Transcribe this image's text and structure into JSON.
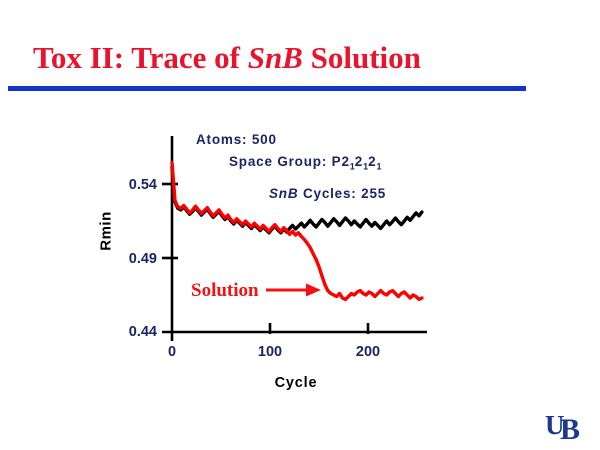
{
  "header": {
    "title_part1": "Tox II: Trace of ",
    "title_italic": "SnB",
    "title_part2": " Solution"
  },
  "annotations": {
    "atoms": "Atoms: 500",
    "space_group": {
      "prefix": "Space Group: P2",
      "sub1": "1",
      "mid1": "2",
      "sub2": "1",
      "mid2": "2",
      "sub3": "1"
    },
    "snb_cycles_italic": "SnB",
    "snb_cycles_rest": " Cycles: 255",
    "solution": "Solution",
    "solution_arrow_points_to": {
      "cycle": 158,
      "rmin": 0.467
    }
  },
  "colors": {
    "background": "#FFFFFF",
    "title_red": "#E9132D",
    "rule_blue": "#1233CC",
    "label_navy": "#1B2566",
    "axis_black": "#000000",
    "solution_red": "#F31111",
    "logo_blue": "#1B3A8E"
  },
  "logo": {
    "u": "U",
    "b": "B"
  },
  "chart_data": {
    "type": "line",
    "title": "",
    "xlabel": "Cycle",
    "ylabel": "Rmin",
    "xlim": [
      0,
      258
    ],
    "ylim": [
      0.44,
      0.565
    ],
    "xticks": [
      0,
      100,
      200
    ],
    "yticks": [
      0.44,
      0.49,
      0.54
    ],
    "xtick_labels": [
      "0",
      "100",
      "200"
    ],
    "ytick_labels": [
      "0.54",
      "0.49",
      "0.44"
    ],
    "grid": false,
    "legend": "none",
    "annotations": [
      "Atoms: 500",
      "Space Group: P2(1)2(1)2(1)",
      "SnB Cycles: 255",
      "Solution (arrow at ~cycle 158, Rmin ~0.467)"
    ],
    "x": [
      0,
      3,
      6,
      9,
      12,
      15,
      18,
      21,
      24,
      27,
      30,
      33,
      36,
      39,
      42,
      45,
      48,
      51,
      54,
      57,
      60,
      63,
      66,
      69,
      72,
      75,
      78,
      81,
      84,
      87,
      90,
      93,
      96,
      99,
      102,
      105,
      108,
      111,
      114,
      117,
      120,
      123,
      126,
      129,
      132,
      135,
      138,
      141,
      144,
      147,
      150,
      153,
      156,
      159,
      162,
      165,
      168,
      171,
      174,
      177,
      180,
      183,
      186,
      189,
      192,
      195,
      198,
      201,
      204,
      207,
      210,
      213,
      216,
      219,
      222,
      225,
      228,
      231,
      234,
      237,
      240,
      243,
      246,
      249,
      252,
      255
    ],
    "series": [
      {
        "key": "no_solution",
        "name": "Rmin trace (non-solution run, black)",
        "color": "#000000",
        "values": [
          0.5515,
          0.528,
          0.5235,
          0.5225,
          0.5245,
          0.522,
          0.5195,
          0.5215,
          0.524,
          0.5215,
          0.519,
          0.521,
          0.523,
          0.52,
          0.5175,
          0.5195,
          0.5215,
          0.5185,
          0.516,
          0.518,
          0.515,
          0.513,
          0.5155,
          0.5135,
          0.5115,
          0.514,
          0.512,
          0.51,
          0.5125,
          0.5105,
          0.5085,
          0.511,
          0.509,
          0.507,
          0.5095,
          0.5115,
          0.509,
          0.507,
          0.5095,
          0.5075,
          0.51,
          0.512,
          0.5095,
          0.5115,
          0.5135,
          0.511,
          0.513,
          0.5155,
          0.513,
          0.511,
          0.5135,
          0.516,
          0.514,
          0.5115,
          0.514,
          0.5165,
          0.5145,
          0.512,
          0.5145,
          0.517,
          0.515,
          0.5125,
          0.515,
          0.513,
          0.511,
          0.5135,
          0.516,
          0.5135,
          0.5115,
          0.514,
          0.512,
          0.51,
          0.5125,
          0.515,
          0.5125,
          0.5145,
          0.517,
          0.5145,
          0.5125,
          0.515,
          0.5175,
          0.5155,
          0.518,
          0.5205,
          0.5185,
          0.521
        ]
      },
      {
        "key": "solution",
        "name": "Rmin trace (solution run, red)",
        "color": "#FF0000",
        "values": [
          0.5545,
          0.529,
          0.5245,
          0.5235,
          0.5255,
          0.523,
          0.5205,
          0.5225,
          0.525,
          0.5225,
          0.52,
          0.522,
          0.524,
          0.521,
          0.5185,
          0.5205,
          0.5225,
          0.5195,
          0.517,
          0.519,
          0.516,
          0.514,
          0.5165,
          0.5145,
          0.5125,
          0.515,
          0.513,
          0.511,
          0.5135,
          0.5115,
          0.5095,
          0.512,
          0.51,
          0.508,
          0.5105,
          0.5125,
          0.51,
          0.508,
          0.5105,
          0.5085,
          0.506,
          0.508,
          0.5055,
          0.507,
          0.5045,
          0.5025,
          0.5,
          0.497,
          0.493,
          0.489,
          0.484,
          0.478,
          0.472,
          0.468,
          0.466,
          0.465,
          0.464,
          0.466,
          0.463,
          0.462,
          0.464,
          0.466,
          0.465,
          0.467,
          0.468,
          0.466,
          0.465,
          0.467,
          0.466,
          0.464,
          0.466,
          0.468,
          0.466,
          0.465,
          0.467,
          0.468,
          0.466,
          0.464,
          0.466,
          0.467,
          0.465,
          0.463,
          0.465,
          0.464,
          0.462,
          0.463
        ]
      }
    ]
  }
}
